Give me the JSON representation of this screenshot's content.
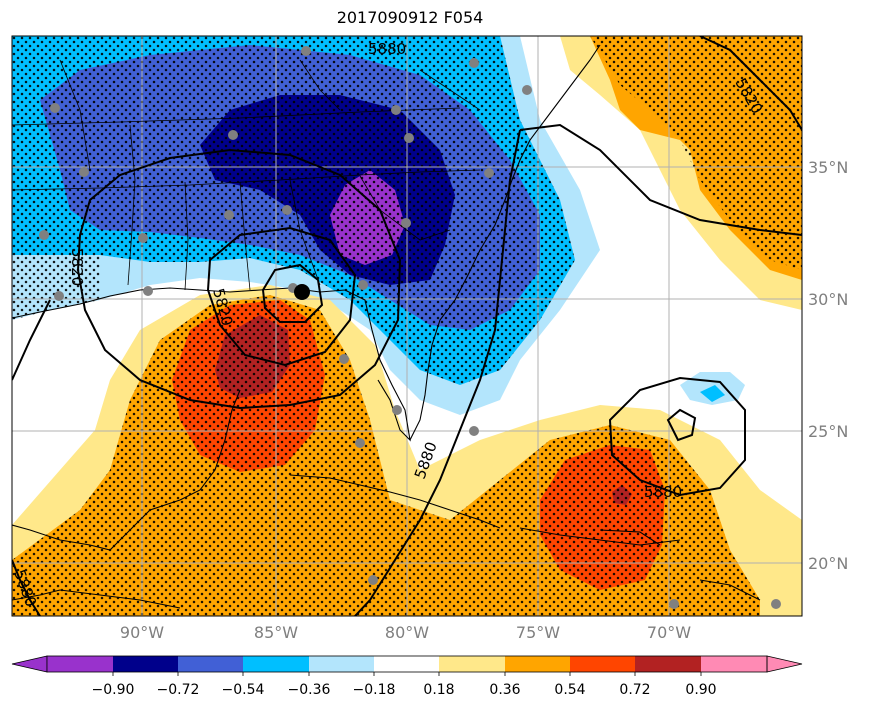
{
  "title": "2017090912 F054",
  "map": {
    "lon_ticks": [
      "90°W",
      "85°W",
      "80°W",
      "75°W",
      "70°W"
    ],
    "lat_ticks": [
      "35°N",
      "30°N",
      "25°N",
      "20°N"
    ],
    "contour_labels": [
      "5880",
      "5820",
      "5820",
      "5880",
      "5880",
      "5880",
      "5820"
    ],
    "stipple": true,
    "colors": {
      "purple": "#9932cc",
      "navy": "#00008b",
      "royal": "#4160d6",
      "cyan": "#00bfff",
      "lightblue": "#b3e5fc",
      "yellow": "#ffe88a",
      "orange": "#ffa500",
      "red": "#ff4500",
      "darkred": "#b22222",
      "pink": "#ff8ab4"
    }
  },
  "colorbar": {
    "ticks": [
      "−0.90",
      "−0.72",
      "−0.54",
      "−0.36",
      "−0.18",
      "0.18",
      "0.36",
      "0.54",
      "0.72",
      "0.90"
    ],
    "colors": [
      "#9932cc",
      "#00008b",
      "#4160d6",
      "#00bfff",
      "#b3e5fc",
      "#ffffff",
      "#ffe88a",
      "#ffa500",
      "#ff4500",
      "#b22222",
      "#ff8ab4"
    ]
  }
}
